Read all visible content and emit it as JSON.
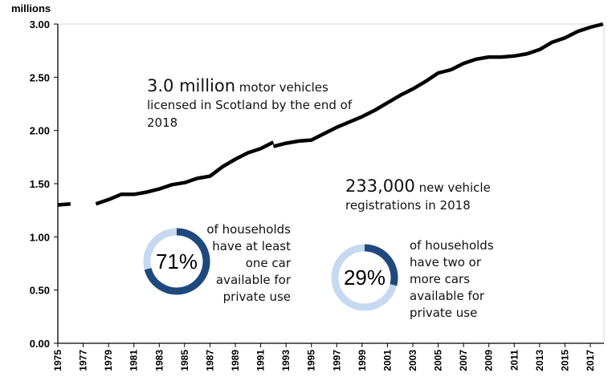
{
  "chart_data": {
    "type": "line",
    "title": "",
    "ylabel": "millions",
    "xlabel": "",
    "ylim": [
      0,
      3.0
    ],
    "xlim": [
      1975,
      2018
    ],
    "yticks": [
      "0.00",
      "0.50",
      "1.00",
      "1.50",
      "2.00",
      "2.50",
      "3.00"
    ],
    "xticks": [
      "1975",
      "1977",
      "1979",
      "1981",
      "1983",
      "1985",
      "1987",
      "1989",
      "1991",
      "1993",
      "1995",
      "1997",
      "1999",
      "2001",
      "2003",
      "2005",
      "2007",
      "2009",
      "2011",
      "2013",
      "2015",
      "2017"
    ],
    "grid": false,
    "series": [
      {
        "name": "Motor vehicles licensed (segment 1)",
        "x": [
          1975,
          1976
        ],
        "values": [
          1.3,
          1.31
        ]
      },
      {
        "name": "Motor vehicles licensed (segment 2)",
        "x": [
          1978,
          1979,
          1980,
          1981,
          1982,
          1983,
          1984,
          1985,
          1986,
          1987,
          1988,
          1989,
          1990,
          1991,
          1992
        ],
        "values": [
          1.31,
          1.35,
          1.4,
          1.4,
          1.42,
          1.45,
          1.49,
          1.51,
          1.55,
          1.57,
          1.66,
          1.73,
          1.79,
          1.83,
          1.89
        ]
      },
      {
        "name": "Motor vehicles licensed (segment 3)",
        "x": [
          1992,
          1993,
          1994,
          1995,
          1996,
          1997,
          1998,
          1999,
          2000,
          2001,
          2002,
          2003,
          2004,
          2005,
          2006,
          2007,
          2008,
          2009,
          2010,
          2011,
          2012,
          2013,
          2014,
          2015,
          2016,
          2017,
          2018
        ],
        "values": [
          1.85,
          1.88,
          1.9,
          1.91,
          1.97,
          2.03,
          2.08,
          2.13,
          2.19,
          2.26,
          2.33,
          2.39,
          2.46,
          2.54,
          2.57,
          2.63,
          2.67,
          2.69,
          2.69,
          2.7,
          2.72,
          2.76,
          2.83,
          2.87,
          2.93,
          2.97,
          3.0
        ]
      }
    ]
  },
  "annotations": {
    "vehicles": {
      "big": "3.0 million",
      "rest": " motor vehicles",
      "line2": "licensed in Scotland by the end of",
      "line3": "2018"
    },
    "registrations": {
      "big": "233,000",
      "rest": " new vehicle",
      "line2": "registrations in 2018"
    }
  },
  "donuts": [
    {
      "value_pct": 71,
      "label": "71%",
      "desc": [
        "of households",
        "have at least",
        "one car",
        "available for",
        "private use"
      ]
    },
    {
      "value_pct": 29,
      "label": "29%",
      "desc": [
        "of households",
        "have two or",
        "more cars",
        "available for",
        "private use"
      ]
    }
  ],
  "colors": {
    "line": "#000000",
    "donut_fill": "#1f497d",
    "donut_track": "#c6d9f1",
    "gridline": "#d9d9d9"
  }
}
